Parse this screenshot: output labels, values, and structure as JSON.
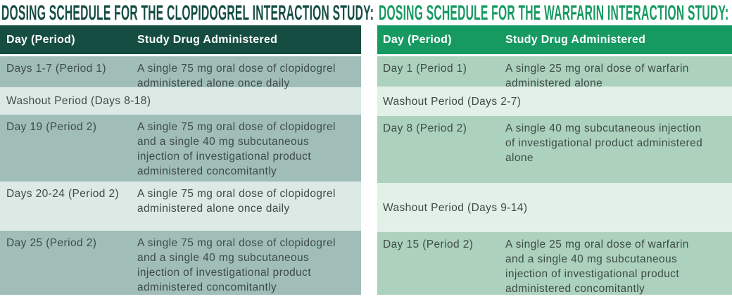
{
  "page": {
    "background": "#ffffff",
    "body_text_color": "#3f4b47"
  },
  "tables": [
    {
      "id": "clopidogrel-study",
      "title": "DOSING SCHEDULE FOR THE CLOPIDOGREL INTERACTION STUDY:",
      "accent_colors": {
        "title": "#154d42",
        "header_bg": "#154d42",
        "header_text": "#ffffff",
        "row_dark": "#a0beb7",
        "row_light": "#dce9e5"
      },
      "columns": {
        "day": "Day (Period)",
        "drug": "Study Drug Administered"
      },
      "rows": [
        {
          "type": "data",
          "day": "Days 1-7 (Period 1)",
          "drug": "A single 75 mg oral dose of clopidogrel\nadministered alone once daily"
        },
        {
          "type": "washout",
          "label": "Washout Period (Days 8-18)"
        },
        {
          "type": "data",
          "day": "Day 19 (Period 2)",
          "drug": "A single 75 mg oral dose of clopidogrel\nand a single 40 mg subcutaneous\ninjection of investigational product\nadministered concomitantly"
        },
        {
          "type": "data",
          "day": "Days 20-24 (Period 2)",
          "drug": "A single 75 mg oral dose of clopidogrel\nadministered alone once daily"
        },
        {
          "type": "data",
          "day": "Day 25 (Period 2)",
          "drug": "A single 75 mg oral dose of clopidogrel\nand a single 40 mg subcutaneous\ninjection of investigational product\nadministered concomitantly"
        }
      ]
    },
    {
      "id": "warfarin-study",
      "title": "DOSING SCHEDULE FOR THE WARFARIN INTERACTION STUDY:",
      "accent_colors": {
        "title": "#169a61",
        "header_bg": "#169a61",
        "header_text": "#ffffff",
        "row_dark": "#acd2be",
        "row_light": "#e2f0e8"
      },
      "columns": {
        "day": "Day (Period)",
        "drug": "Study Drug Administered"
      },
      "rows": [
        {
          "type": "data",
          "day": "Day 1 (Period 1)",
          "drug": "A single 25 mg oral dose of warfarin\nadministered alone"
        },
        {
          "type": "washout",
          "label": "Washout Period (Days 2-7)"
        },
        {
          "type": "data",
          "day": "Day 8 (Period 2)",
          "drug": "A single 40 mg subcutaneous injection\nof investigational product administered\nalone"
        },
        {
          "type": "washout",
          "label": "Washout Period (Days 9-14)"
        },
        {
          "type": "data",
          "day": "Day 15 (Period 2)",
          "drug": "A single 25 mg oral dose of warfarin\nand a single 40 mg subcutaneous\ninjection of investigational product\nadministered concomitantly"
        }
      ]
    }
  ]
}
